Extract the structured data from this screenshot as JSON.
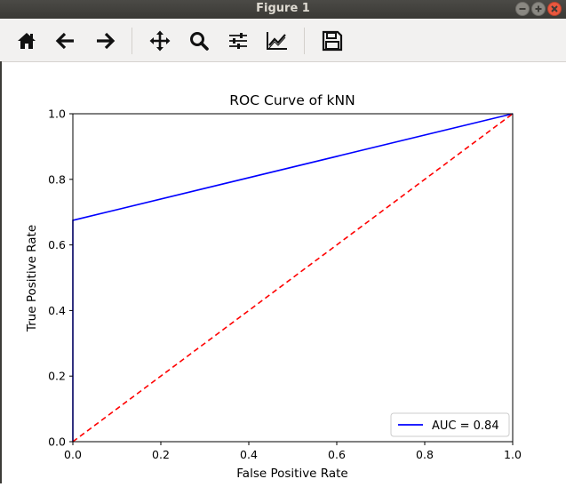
{
  "window": {
    "title": "Figure 1"
  },
  "toolbar": {
    "buttons": [
      {
        "name": "home-icon",
        "tip": ""
      },
      {
        "name": "back-arrow-icon",
        "tip": ""
      },
      {
        "name": "forward-arrow-icon",
        "tip": ""
      },
      {
        "name": "pan-icon",
        "tip": ""
      },
      {
        "name": "zoom-icon",
        "tip": ""
      },
      {
        "name": "configure-subplots-icon",
        "tip": ""
      },
      {
        "name": "edit-axis-icon",
        "tip": ""
      },
      {
        "name": "save-icon",
        "tip": ""
      }
    ]
  },
  "colors": {
    "roc_line": "#0000ff",
    "chance_line": "#ff0000",
    "titlebar": "#3c3b37",
    "toolbar": "#f2f1f0"
  },
  "chart_data": {
    "type": "line",
    "title": "ROC Curve of kNN",
    "xlabel": "False Positive Rate",
    "ylabel": "True Positive Rate",
    "xlim": [
      0.0,
      1.0
    ],
    "ylim": [
      0.0,
      1.0
    ],
    "xticks": [
      "0.0",
      "0.2",
      "0.4",
      "0.6",
      "0.8",
      "1.0"
    ],
    "yticks": [
      "0.0",
      "0.2",
      "0.4",
      "0.6",
      "0.8",
      "1.0"
    ],
    "grid": false,
    "legend_position": "lower right",
    "series": [
      {
        "name": "AUC = 0.84",
        "style": "solid",
        "color": "#0000ff",
        "x": [
          0.0,
          0.0,
          1.0
        ],
        "y": [
          0.0,
          0.675,
          1.0
        ]
      },
      {
        "style": "dashed",
        "color": "#ff0000",
        "x": [
          0.0,
          1.0
        ],
        "y": [
          0.0,
          1.0
        ]
      }
    ]
  }
}
